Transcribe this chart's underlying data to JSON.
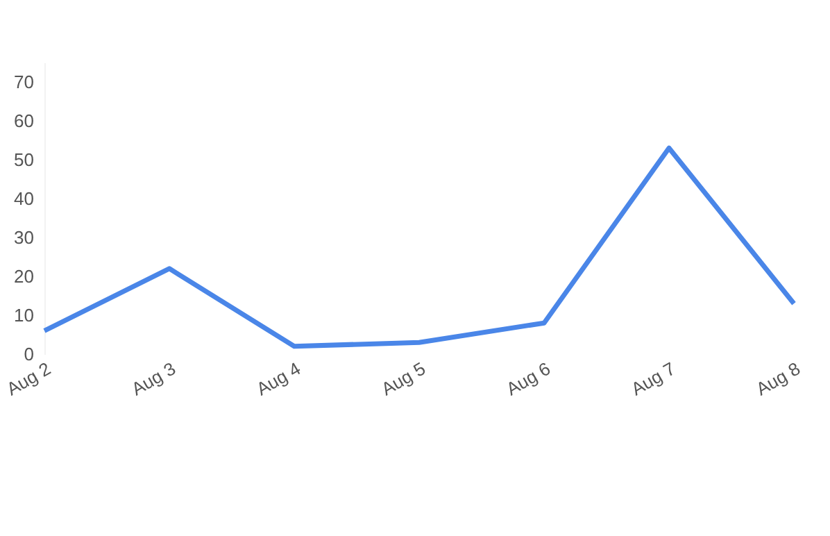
{
  "chart_data": {
    "type": "line",
    "categories": [
      "Aug 2",
      "Aug 3",
      "Aug 4",
      "Aug 5",
      "Aug 6",
      "Aug 7",
      "Aug 8"
    ],
    "series": [
      {
        "color": "#4a86e8",
        "values": [
          6,
          22,
          2,
          3,
          8,
          53,
          13
        ]
      }
    ],
    "ylim": [
      0,
      75
    ],
    "yticks": [
      0,
      10,
      20,
      30,
      40,
      50,
      60,
      70
    ],
    "grid": false,
    "marker": "none",
    "line_style": "solid"
  }
}
